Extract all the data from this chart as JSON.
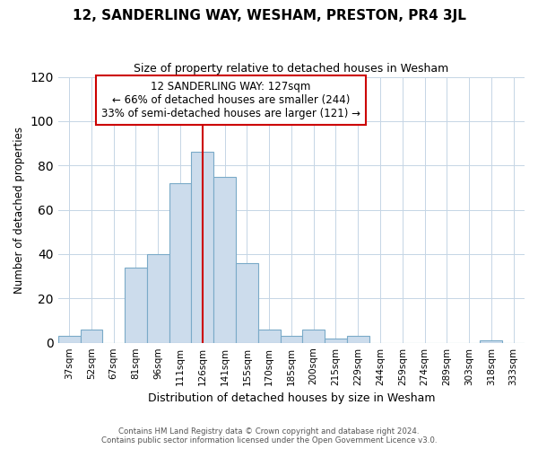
{
  "title": "12, SANDERLING WAY, WESHAM, PRESTON, PR4 3JL",
  "subtitle": "Size of property relative to detached houses in Wesham",
  "xlabel": "Distribution of detached houses by size in Wesham",
  "ylabel": "Number of detached properties",
  "bar_labels": [
    "37sqm",
    "52sqm",
    "67sqm",
    "81sqm",
    "96sqm",
    "111sqm",
    "126sqm",
    "141sqm",
    "155sqm",
    "170sqm",
    "185sqm",
    "200sqm",
    "215sqm",
    "229sqm",
    "244sqm",
    "259sqm",
    "274sqm",
    "289sqm",
    "303sqm",
    "318sqm",
    "333sqm"
  ],
  "bar_heights": [
    3,
    6,
    0,
    34,
    40,
    72,
    86,
    75,
    36,
    6,
    3,
    6,
    2,
    3,
    0,
    0,
    0,
    0,
    0,
    1,
    0
  ],
  "bar_color": "#ccdcec",
  "bar_edge_color": "#7aaac8",
  "property_bar_index": 6,
  "annotation_lines": [
    "12 SANDERLING WAY: 127sqm",
    "← 66% of detached houses are smaller (244)",
    "33% of semi-detached houses are larger (121) →"
  ],
  "annotation_box_color": "#ffffff",
  "annotation_box_edge": "#cc0000",
  "vline_color": "#cc0000",
  "ylim": [
    0,
    120
  ],
  "yticks": [
    0,
    20,
    40,
    60,
    80,
    100,
    120
  ],
  "footer_line1": "Contains HM Land Registry data © Crown copyright and database right 2024.",
  "footer_line2": "Contains public sector information licensed under the Open Government Licence v3.0.",
  "background_color": "#ffffff",
  "grid_color": "#c5d5e5"
}
